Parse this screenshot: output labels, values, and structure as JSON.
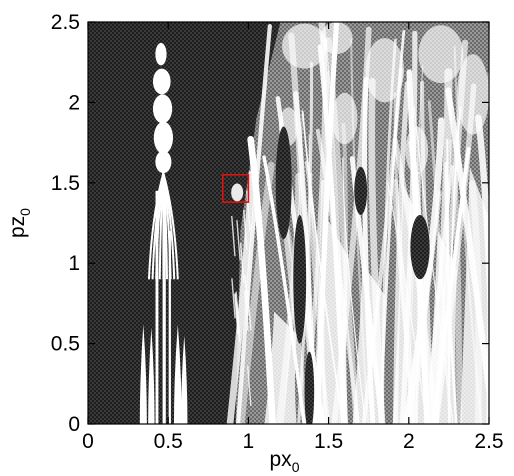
{
  "chart_data": {
    "type": "heatmap",
    "title": "",
    "xlabel": "px",
    "xlabel_subscript": "0",
    "ylabel": "pz",
    "ylabel_subscript": "0",
    "xlim": [
      0,
      2.5
    ],
    "ylim": [
      0,
      2.5
    ],
    "x_ticks": [
      0,
      0.5,
      1,
      1.5,
      2,
      2.5
    ],
    "x_tick_labels": [
      "0",
      "0.5",
      "1",
      "1.5",
      "2",
      "2.5"
    ],
    "y_ticks": [
      0,
      0.5,
      1,
      1.5,
      2,
      2.5
    ],
    "y_tick_labels": [
      "0",
      "0.5",
      "1",
      "1.5",
      "2",
      "2.5"
    ],
    "grid": false,
    "legend": "none",
    "colors": {
      "dense_region": "#2b2b2b",
      "mid_region": "#8f8f8f",
      "open_region": "#ffffff",
      "highlight_box": "#e01010"
    },
    "highlight_box": {
      "x_range": [
        0.84,
        1.0
      ],
      "y_range": [
        1.38,
        1.55
      ]
    },
    "white_structures": [
      {
        "name": "left-column-lobes",
        "x_range": [
          0.38,
          0.52
        ],
        "y_range": [
          1.6,
          2.38
        ]
      },
      {
        "name": "left-stems",
        "x_range": [
          0.4,
          0.56
        ],
        "y_range": [
          0.0,
          1.6
        ]
      },
      {
        "name": "left-side-spikes",
        "x_range": [
          0.32,
          0.62
        ],
        "y_range": [
          0.0,
          0.62
        ]
      },
      {
        "name": "right-open-region",
        "x_range": [
          1.0,
          2.5
        ],
        "y_range": [
          0.0,
          2.5
        ]
      }
    ]
  }
}
